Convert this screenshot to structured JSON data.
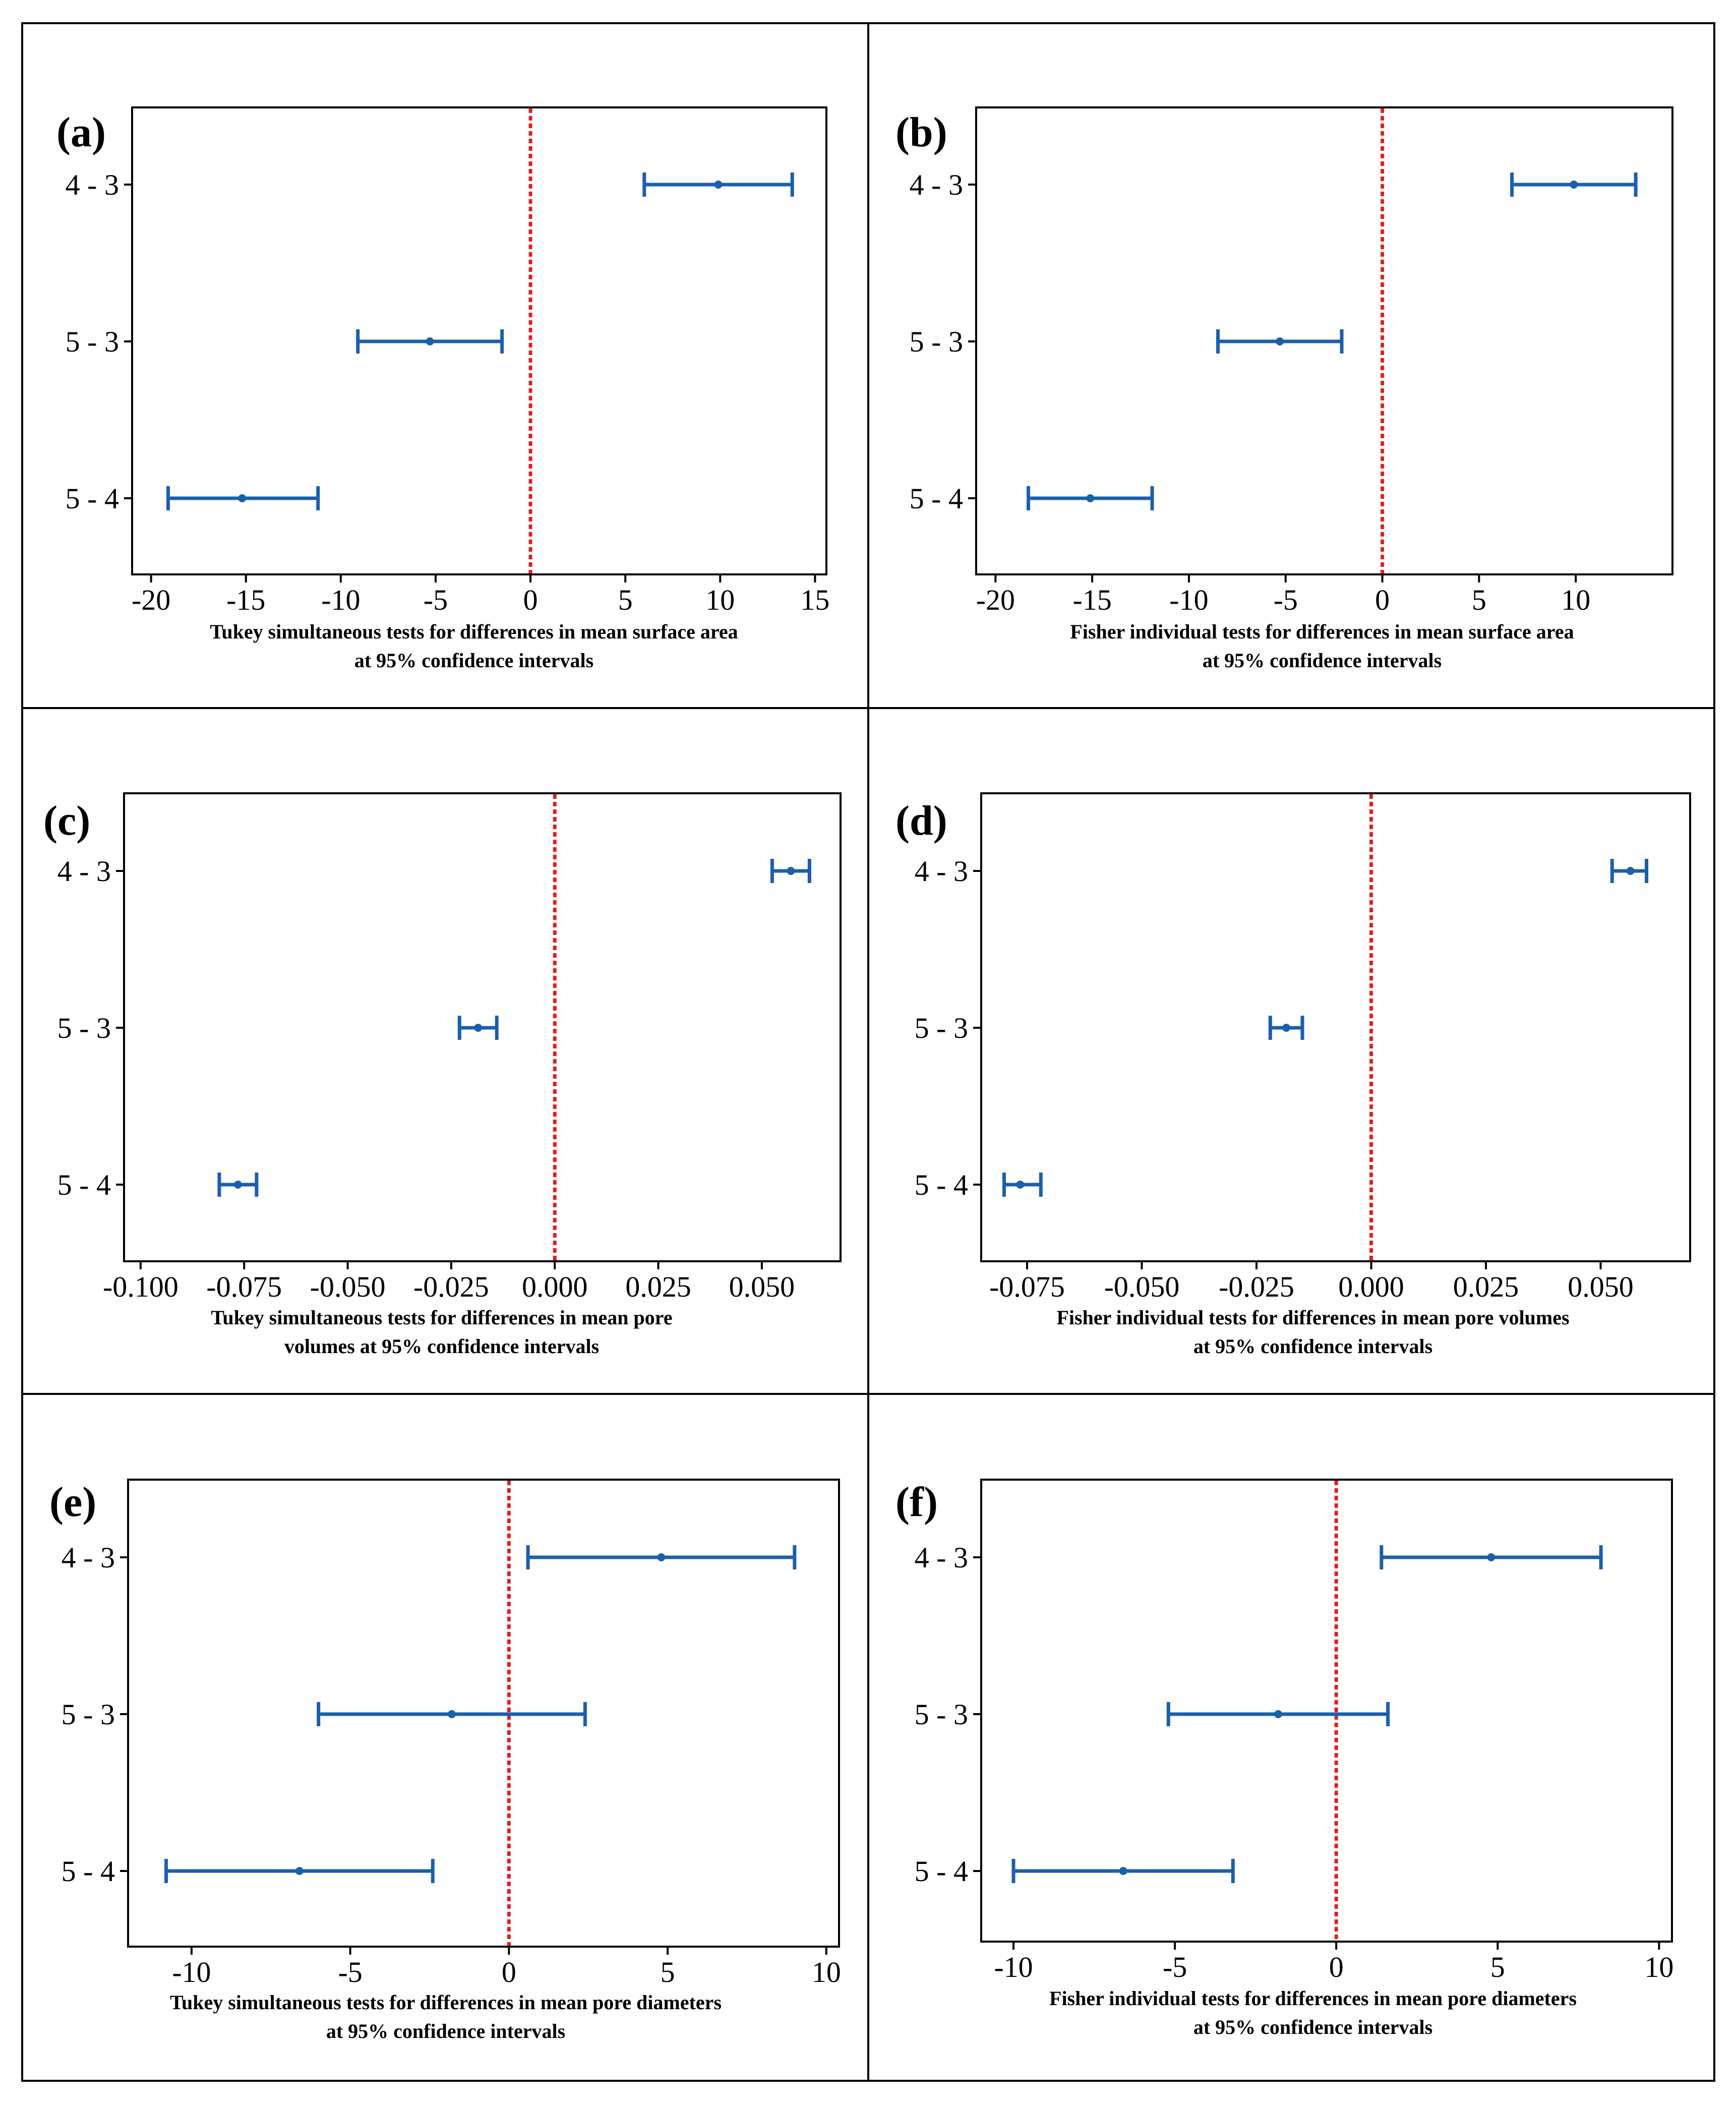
{
  "figure": {
    "accent": "#1b5fad",
    "zero_line": "#e02020",
    "frame": "#000000"
  },
  "chart_data": [
    {
      "id": "a",
      "panel_label": "(a)",
      "type": "interval",
      "categories": [
        "4 - 3",
        "5 - 3",
        "5 - 4"
      ],
      "estimates": [
        9.9,
        -5.3,
        -15.2
      ],
      "lower": [
        6.0,
        -9.1,
        -19.1
      ],
      "upper": [
        13.8,
        -1.5,
        -11.2
      ],
      "xlim": [
        -21,
        15.6
      ],
      "xticks": [
        -20,
        -15,
        -10,
        -5,
        0,
        5,
        10,
        15
      ],
      "xtick_labels": [
        "-20",
        "-15",
        "-10",
        "-5",
        "0",
        "5",
        "10",
        "15"
      ],
      "reference_line": 0,
      "caption": [
        "Tukey simultaneous tests for differences in mean surface area",
        "at 95% confidence intervals"
      ]
    },
    {
      "id": "b",
      "panel_label": "(b)",
      "type": "interval",
      "categories": [
        "4 - 3",
        "5 - 3",
        "5 - 4"
      ],
      "estimates": [
        9.9,
        -5.3,
        -15.1
      ],
      "lower": [
        6.7,
        -8.5,
        -18.3
      ],
      "upper": [
        13.1,
        -2.1,
        -11.9
      ],
      "xlim": [
        -21,
        15
      ],
      "xticks": [
        -20,
        -15,
        -10,
        -5,
        0,
        5,
        10
      ],
      "xtick_labels": [
        "-20",
        "-15",
        "-10",
        "-5",
        "0",
        "5",
        "10"
      ],
      "reference_line": 0,
      "caption": [
        "Fisher individual tests for differences in mean surface area",
        "at 95% confidence intervals"
      ]
    },
    {
      "id": "c",
      "panel_label": "(c)",
      "type": "interval",
      "categories": [
        "4 - 3",
        "5 - 3",
        "5 - 4"
      ],
      "estimates": [
        0.057,
        -0.0185,
        -0.0765
      ],
      "lower": [
        0.0525,
        -0.023,
        -0.081
      ],
      "upper": [
        0.0615,
        -0.014,
        -0.072
      ],
      "xlim": [
        -0.104,
        0.069
      ],
      "xticks": [
        -0.1,
        -0.075,
        -0.05,
        -0.025,
        0,
        0.025,
        0.05
      ],
      "xtick_labels": [
        "-0.100",
        "-0.075",
        "-0.050",
        "-0.025",
        "0.000",
        "0.025",
        "0.050"
      ],
      "reference_line": 0,
      "caption": [
        "Tukey simultaneous tests for differences in mean pore",
        "volumes at 95% confidence intervals"
      ]
    },
    {
      "id": "d",
      "panel_label": "(d)",
      "type": "interval",
      "categories": [
        "4 - 3",
        "5 - 3",
        "5 - 4"
      ],
      "estimates": [
        0.0565,
        -0.0185,
        -0.0765
      ],
      "lower": [
        0.0525,
        -0.022,
        -0.08
      ],
      "upper": [
        0.06,
        -0.015,
        -0.072
      ],
      "xlim": [
        -0.085,
        0.0695
      ],
      "xticks": [
        -0.075,
        -0.05,
        -0.025,
        0,
        0.025,
        0.05
      ],
      "xtick_labels": [
        "-0.075",
        "-0.050",
        "-0.025",
        "0.000",
        "0.025",
        "0.050"
      ],
      "reference_line": 0,
      "caption": [
        "Fisher individual tests for differences in mean pore volumes",
        "at 95% confidence intervals"
      ]
    },
    {
      "id": "e",
      "panel_label": "(e)",
      "type": "interval",
      "categories": [
        "4 - 3",
        "5 - 3",
        "5 - 4"
      ],
      "estimates": [
        4.8,
        -1.8,
        -6.6
      ],
      "lower": [
        0.6,
        -6.0,
        -10.8
      ],
      "upper": [
        9.0,
        2.4,
        -2.4
      ],
      "xlim": [
        -12,
        10.4
      ],
      "xticks": [
        -10,
        -5,
        0,
        5,
        10
      ],
      "xtick_labels": [
        "-10",
        "-5",
        "0",
        "5",
        "10"
      ],
      "reference_line": 0,
      "caption": [
        "Tukey simultaneous tests for differences in mean pore diameters",
        "at 95% confidence intervals"
      ]
    },
    {
      "id": "f",
      "panel_label": "(f)",
      "type": "interval",
      "categories": [
        "4 - 3",
        "5 - 3",
        "5 - 4"
      ],
      "estimates": [
        4.8,
        -1.8,
        -6.6
      ],
      "lower": [
        1.4,
        -5.2,
        -10.0
      ],
      "upper": [
        8.2,
        1.6,
        -3.2
      ],
      "xlim": [
        -11,
        10.4
      ],
      "xticks": [
        -10,
        -5,
        0,
        5,
        10
      ],
      "xtick_labels": [
        "-10",
        "-5",
        "0",
        "5",
        "10"
      ],
      "reference_line": 0,
      "caption": [
        "Fisher individual tests for differences in mean pore diameters",
        "at 95% confidence intervals"
      ]
    }
  ]
}
